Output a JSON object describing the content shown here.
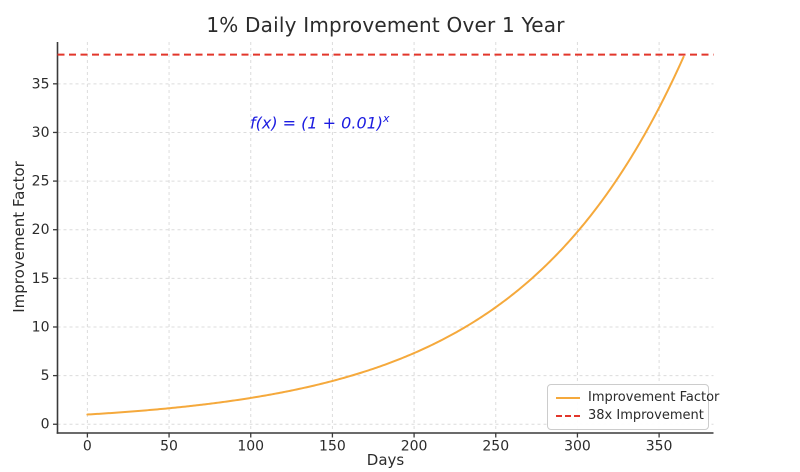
{
  "chart_data": {
    "type": "line",
    "title": "1% Daily Improvement Over 1 Year",
    "xlabel": "Days",
    "ylabel": "Improvement Factor",
    "xlim": [
      -18.3,
      383.3
    ],
    "ylim": [
      -0.9,
      39.3
    ],
    "xticks": [
      0,
      50,
      100,
      150,
      200,
      250,
      300,
      350
    ],
    "yticks": [
      0,
      5,
      10,
      15,
      20,
      25,
      30,
      35
    ],
    "grid": true,
    "grid_color": "#dcdcdc",
    "spine_color": "#3a3a3a",
    "tick_label_color": "#2b2b2b",
    "series": [
      {
        "name": "Improvement Factor",
        "type": "exponential",
        "rate": 0.01,
        "x_start": 0,
        "x_end": 365,
        "color": "#f5a93c",
        "line_style": "solid",
        "sample_points": {
          "x": [
            0,
            50,
            100,
            150,
            200,
            250,
            300,
            350,
            365
          ],
          "y": [
            1.0,
            1.64,
            2.7,
            4.45,
            7.32,
            12.03,
            19.79,
            32.56,
            37.78
          ]
        }
      },
      {
        "name": "38x Improvement",
        "type": "hline",
        "y": 38,
        "color": "#e2362b",
        "line_style": "dashed"
      }
    ],
    "annotation": {
      "text": "f(x) = (1 + 0.01)^x",
      "func": "f(x)",
      "mid": " = (1 + 0.01)",
      "exponent": "x",
      "color": "#1b1be0",
      "anchor_x": 100,
      "anchor_y": 31
    },
    "legend": {
      "position": "lower right",
      "items": [
        {
          "label": "Improvement Factor",
          "color": "#f5a93c",
          "line_style": "solid"
        },
        {
          "label": "38x Improvement",
          "color": "#e2362b",
          "line_style": "dashed"
        }
      ]
    }
  }
}
